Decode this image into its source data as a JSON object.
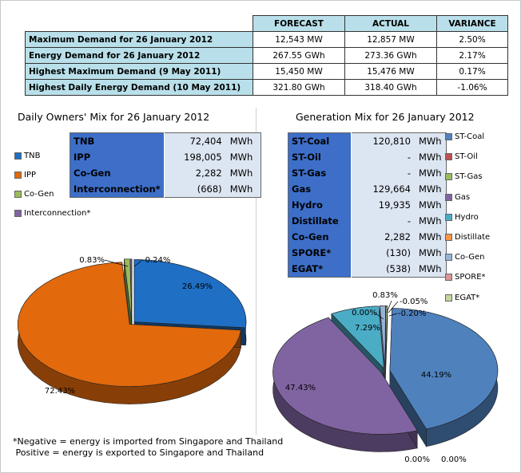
{
  "summary": {
    "headers": [
      "FORECAST",
      "ACTUAL",
      "VARIANCE"
    ],
    "rows": [
      {
        "label": "Maximum Demand for 26 January 2012",
        "forecast": "12,543  MW",
        "actual": "12,857  MW",
        "variance": "2.50%"
      },
      {
        "label": "Energy Demand for 26 January 2012",
        "forecast": "267.55  GWh",
        "actual": "273.36  GWh",
        "variance": "2.17%"
      },
      {
        "label": "Highest Maximum Demand (9 May 2011)",
        "forecast": "15,450  MW",
        "actual": "15,476  MW",
        "variance": "0.17%"
      },
      {
        "label": "Highest Daily Energy Demand (10 May 2011)",
        "forecast": "321.80  GWh",
        "actual": "318.40  GWh",
        "variance": "-1.06%"
      }
    ]
  },
  "owners": {
    "title": "Daily Owners' Mix for 26 January 2012",
    "table": [
      {
        "name": "TNB",
        "value": "72,404",
        "unit": "MWh"
      },
      {
        "name": "IPP",
        "value": "198,005",
        "unit": "MWh"
      },
      {
        "name": "Co-Gen",
        "value": "2,282",
        "unit": "MWh"
      },
      {
        "name": "Interconnection*",
        "value": "(668)",
        "unit": "MWh"
      }
    ]
  },
  "generation": {
    "title": "Generation Mix for 26 January 2012",
    "table": [
      {
        "name": "ST-Coal",
        "value": "120,810",
        "unit": "MWh"
      },
      {
        "name": "ST-Oil",
        "value": "-",
        "unit": "MWh"
      },
      {
        "name": "ST-Gas",
        "value": "-",
        "unit": "MWh"
      },
      {
        "name": "Gas",
        "value": "129,664",
        "unit": "MWh"
      },
      {
        "name": "Hydro",
        "value": "19,935",
        "unit": "MWh"
      },
      {
        "name": "Distillate",
        "value": "-",
        "unit": "MWh"
      },
      {
        "name": "Co-Gen",
        "value": "2,282",
        "unit": "MWh"
      },
      {
        "name": "SPORE*",
        "value": "(130)",
        "unit": "MWh"
      },
      {
        "name": "EGAT*",
        "value": "(538)",
        "unit": "MWh"
      }
    ]
  },
  "footnote": {
    "line1": "*Negative = energy is imported from Singapore and Thailand",
    "line2": " Positive = energy is exported to Singapore and Thailand"
  },
  "chart_data": [
    {
      "type": "pie",
      "title": "Daily Owners' Mix for 26 January 2012",
      "legend": "left",
      "slices": [
        {
          "label": "TNB",
          "value": 26.49,
          "display": "26.49%",
          "color": "#1f6fc4"
        },
        {
          "label": "IPP",
          "value": 72.43,
          "display": "72.43%",
          "color": "#e2690c"
        },
        {
          "label": "Co-Gen",
          "value": 0.83,
          "display": "0.83%",
          "color": "#9bbb59"
        },
        {
          "label": "Interconnection*",
          "value": 0.24,
          "display": "-0.24%",
          "color": "#8064a2"
        }
      ]
    },
    {
      "type": "pie",
      "title": "Generation Mix for 26 January 2012",
      "legend": "right",
      "slices": [
        {
          "label": "ST-Coal",
          "value": 44.19,
          "display": "44.19%",
          "color": "#4f81bd"
        },
        {
          "label": "ST-Oil",
          "value": 0,
          "display": "0.00%",
          "color": "#c0504d"
        },
        {
          "label": "ST-Gas",
          "value": 0,
          "display": "0.00%",
          "color": "#9bbb59"
        },
        {
          "label": "Gas",
          "value": 47.43,
          "display": "47.43%",
          "color": "#8064a2"
        },
        {
          "label": "Hydro",
          "value": 7.29,
          "display": "7.29%",
          "color": "#4bacc6"
        },
        {
          "label": "Distillate",
          "value": 0,
          "display": "0.00%",
          "color": "#f79646"
        },
        {
          "label": "Co-Gen",
          "value": 0.83,
          "display": "0.83%",
          "color": "#95b3d7"
        },
        {
          "label": "SPORE*",
          "value": 0.05,
          "display": "-0.05%",
          "color": "#d99694"
        },
        {
          "label": "EGAT*",
          "value": 0.2,
          "display": "-0.20%",
          "color": "#c3d69b"
        }
      ]
    }
  ]
}
